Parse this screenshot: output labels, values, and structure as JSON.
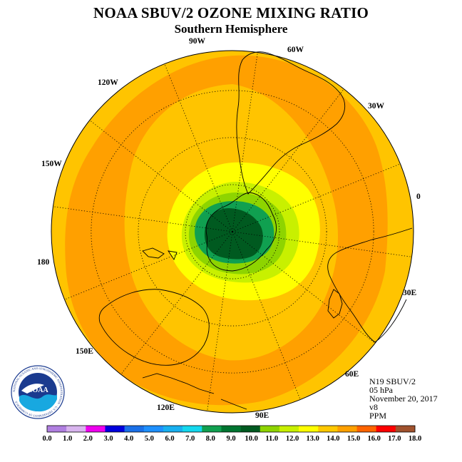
{
  "title": "NOAA SBUV/2 OZONE MIXING RATIO",
  "subtitle": "Southern Hemisphere",
  "longitude_labels": {
    "lon_0": "0",
    "lon_30w": "30W",
    "lon_60w": "60W",
    "lon_90w": "90W",
    "lon_120w": "120W",
    "lon_150w": "150W",
    "lon_180": "180",
    "lon_150e": "150E",
    "lon_120e": "120E",
    "lon_90e": "90E",
    "lon_60e": "60E",
    "lon_30e": "30E"
  },
  "info": {
    "satellite": "N19 SBUV/2",
    "level": "05 hPa",
    "date": "November 20, 2017",
    "version": "v8",
    "units": "PPM"
  },
  "logo": {
    "text": "NOAA",
    "ring_text": "NATIONAL OCEANIC AND ATMOSPHERIC ADMINISTRATION · U.S. DEPARTMENT OF COMMERCE"
  },
  "colorbar": {
    "labels": [
      "0.0",
      "1.0",
      "2.0",
      "3.0",
      "4.0",
      "5.0",
      "6.0",
      "7.0",
      "8.0",
      "9.0",
      "10.0",
      "11.0",
      "12.0",
      "13.0",
      "14.0",
      "15.0",
      "16.0",
      "17.0",
      "18.0"
    ],
    "colors": [
      "#b07fe0",
      "#d8b4ee",
      "#ee00ee",
      "#0000dd",
      "#1a70e8",
      "#1e90ff",
      "#18b0f0",
      "#14d8ee",
      "#10a050",
      "#007530",
      "#005a20",
      "#8ed400",
      "#c8f000",
      "#ffff00",
      "#ffc800",
      "#ffa000",
      "#ff6400",
      "#ff0000",
      "#a0522d"
    ]
  },
  "map_colors": {
    "outer": "#ffc400",
    "band_orange": "#ffa000",
    "yellow": "#ffff00",
    "yellow_green": "#c8f000",
    "light_green": "#8ed400",
    "green": "#10a050",
    "dark_green": "#005a20"
  }
}
